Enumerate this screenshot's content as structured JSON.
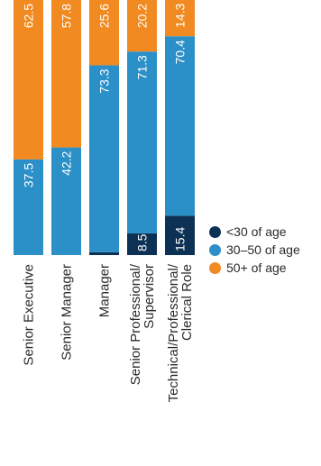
{
  "chart_data": {
    "type": "bar",
    "stacked": true,
    "orientation": "vertical",
    "categories": [
      [
        "Senior Executive"
      ],
      [
        "Senior Manager"
      ],
      [
        "Manager"
      ],
      [
        "Senior Professional/",
        "Supervisor"
      ],
      [
        "Technical/Professional/",
        "Clerical Role"
      ]
    ],
    "series": [
      {
        "name": "<30 of age",
        "color": "#0d3154",
        "values": [
          0,
          0,
          1.1,
          8.5,
          15.4
        ]
      },
      {
        "name": "30–50 of age",
        "color": "#2b8fc8",
        "values": [
          37.5,
          42.2,
          73.3,
          71.3,
          70.4
        ]
      },
      {
        "name": "50+ of age",
        "color": "#f08a21",
        "values": [
          62.5,
          57.8,
          25.6,
          20.2,
          14.3
        ]
      }
    ],
    "value_labels": [
      [
        "",
        "37.5",
        "62.5"
      ],
      [
        "",
        "42.2",
        "57.8"
      ],
      [
        "1.1",
        "73.3",
        "25.6"
      ],
      [
        "8.5",
        "71.3",
        "20.2"
      ],
      [
        "15.4",
        "70.4",
        "14.3"
      ]
    ],
    "ylim": [
      0,
      100
    ],
    "legend_position": "right",
    "grid": false
  }
}
